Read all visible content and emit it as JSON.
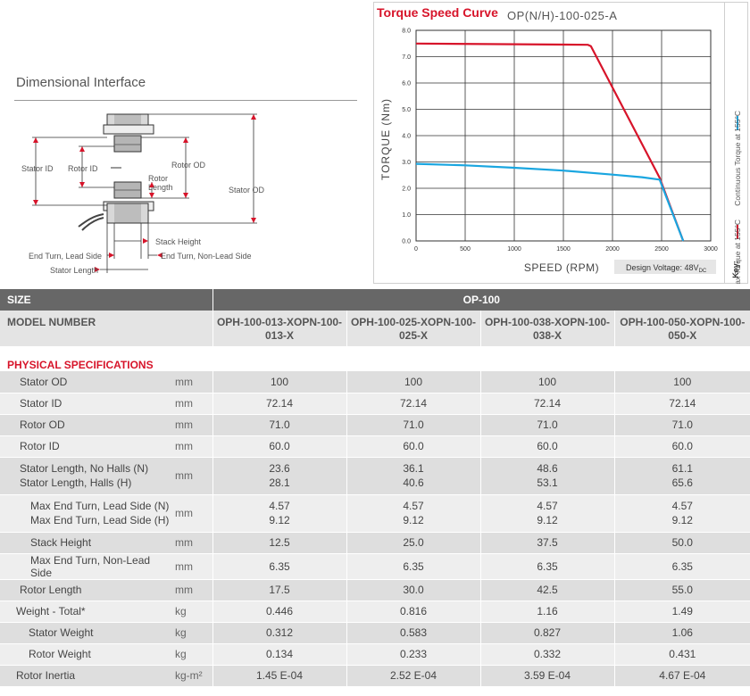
{
  "dimensional": {
    "title": "Dimensional Interface",
    "labels": {
      "stator_id": "Stator ID",
      "rotor_id": "Rotor ID",
      "rotor_od": "Rotor OD",
      "rotor_length_1": "Rotor",
      "rotor_length_2": "Length",
      "stator_od": "Stator OD",
      "stack_height": "Stack Height",
      "end_turn_lead": "End Turn, Lead Side",
      "end_turn_nonlead": "End Turn, Non-Lead Side",
      "stator_length": "Stator Length"
    }
  },
  "chart_data": {
    "type": "line",
    "title": "Torque Speed Curve",
    "subtitle": "OP(N/H)-100-025-A",
    "xlabel": "SPEED (RPM)",
    "ylabel": "TORQUE (Nm)",
    "xlim": [
      0,
      3000
    ],
    "ylim": [
      0,
      8
    ],
    "x_ticks": [
      "0",
      "500",
      "1000",
      "1500",
      "2000",
      "2500",
      "3000"
    ],
    "y_ticks": [
      "0.0",
      "1.0",
      "2.0",
      "3.0",
      "4.0",
      "5.0",
      "6.0",
      "7.0",
      "8.0"
    ],
    "grid": true,
    "annotation_main": "Design Voltage: 48V",
    "annotation_sub": "DC",
    "key_label": "Key:",
    "series": [
      {
        "name": "Max Torque at 155°C",
        "color": "#d7142a",
        "points": [
          [
            0,
            7.5
          ],
          [
            1750,
            7.45
          ],
          [
            1780,
            7.4
          ],
          [
            2480,
            2.4
          ],
          [
            2720,
            0.0
          ]
        ]
      },
      {
        "name": "Continuous Torque at 155°C",
        "color": "#1aa6e0",
        "points": [
          [
            0,
            2.93
          ],
          [
            500,
            2.87
          ],
          [
            1000,
            2.78
          ],
          [
            1500,
            2.67
          ],
          [
            2000,
            2.52
          ],
          [
            2300,
            2.42
          ],
          [
            2480,
            2.33
          ],
          [
            2720,
            0.0
          ]
        ]
      }
    ]
  },
  "table": {
    "size_label": "SIZE",
    "size_value": "OP-100",
    "model_label": "MODEL NUMBER",
    "models": [
      {
        "line1": "OPH-100-013-X",
        "line2": "OPN-100-013-X"
      },
      {
        "line1": "OPH-100-025-X",
        "line2": "OPN-100-025-X"
      },
      {
        "line1": "OPH-100-038-X",
        "line2": "OPN-100-038-X"
      },
      {
        "line1": "OPH-100-050-X",
        "line2": "OPN-100-050-X"
      }
    ],
    "section_physical": "PHYSICAL SPECIFICATIONS",
    "rows": {
      "stator_od": {
        "label": "Stator OD",
        "unit": "mm",
        "values": [
          "100",
          "100",
          "100",
          "100"
        ]
      },
      "stator_id": {
        "label": "Stator ID",
        "unit": "mm",
        "values": [
          "72.14",
          "72.14",
          "72.14",
          "72.14"
        ]
      },
      "rotor_od": {
        "label": "Rotor OD",
        "unit": "mm",
        "values": [
          "71.0",
          "71.0",
          "71.0",
          "71.0"
        ]
      },
      "rotor_id": {
        "label": "Rotor ID",
        "unit": "mm",
        "values": [
          "60.0",
          "60.0",
          "60.0",
          "60.0"
        ]
      },
      "stator_length": {
        "label1": "Stator Length, No Halls (N)",
        "label2": "Stator Length, Halls (H)",
        "unit": "mm",
        "values1": [
          "23.6",
          "36.1",
          "48.6",
          "61.1"
        ],
        "values2": [
          "28.1",
          "40.6",
          "53.1",
          "65.6"
        ]
      },
      "max_end_turn_lead": {
        "label1": "Max End Turn, Lead Side (N)",
        "label2": "Max End Turn, Lead Side (H)",
        "unit": "mm",
        "values1": [
          "4.57",
          "4.57",
          "4.57",
          "4.57"
        ],
        "values2": [
          "9.12",
          "9.12",
          "9.12",
          "9.12"
        ]
      },
      "stack_height": {
        "label": "Stack Height",
        "unit": "mm",
        "values": [
          "12.5",
          "25.0",
          "37.5",
          "50.0"
        ]
      },
      "max_end_turn_nonlead": {
        "label": "Max End Turn, Non-Lead Side",
        "unit": "mm",
        "values": [
          "6.35",
          "6.35",
          "6.35",
          "6.35"
        ]
      },
      "rotor_length": {
        "label": "Rotor Length",
        "unit": "mm",
        "values": [
          "17.5",
          "30.0",
          "42.5",
          "55.0"
        ]
      },
      "weight_total": {
        "label": "Weight - Total*",
        "unit": "kg",
        "values": [
          "0.446",
          "0.816",
          "1.16",
          "1.49"
        ]
      },
      "stator_weight": {
        "label": "Stator Weight",
        "unit": "kg",
        "values": [
          "0.312",
          "0.583",
          "0.827",
          "1.06"
        ]
      },
      "rotor_weight": {
        "label": "Rotor Weight",
        "unit": "kg",
        "values": [
          "0.134",
          "0.233",
          "0.332",
          "0.431"
        ]
      },
      "rotor_inertia": {
        "label": "Rotor Inertia",
        "unit": "kg-m²",
        "values": [
          "1.45 E-04",
          "2.52 E-04",
          "3.59 E-04",
          "4.67 E-04"
        ]
      }
    }
  }
}
